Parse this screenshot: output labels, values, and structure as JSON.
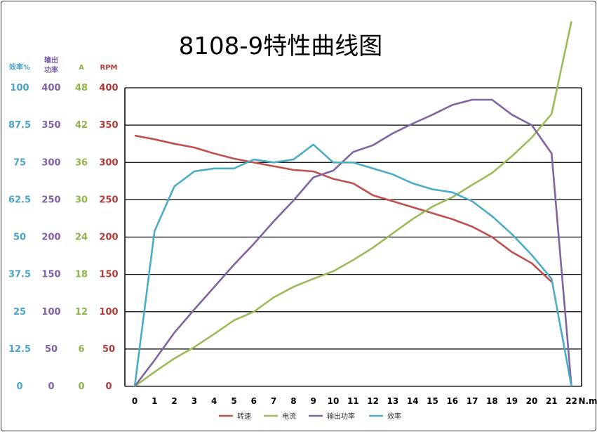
{
  "title": "8108-9特性曲线图",
  "chart_data": {
    "type": "line",
    "title": "8108-9特性曲线图",
    "x": [
      0,
      1,
      2,
      3,
      4,
      5,
      6,
      7,
      8,
      9,
      10,
      11,
      12,
      13,
      14,
      15,
      16,
      17,
      18,
      19,
      20,
      21,
      22
    ],
    "xlim": [
      0,
      22
    ],
    "xunit": "N.m",
    "grid": true,
    "legend_position": "bottom",
    "axes": [
      {
        "header": "效率%",
        "color": "#4aa3c8",
        "ticks": [
          "100",
          "87.5",
          "75",
          "62.5",
          "50",
          "37.5",
          "25",
          "12.5",
          "0"
        ],
        "range": [
          0,
          100
        ]
      },
      {
        "header": "输出功率",
        "color": "#7f5fa8",
        "ticks": [
          "400",
          "350",
          "300",
          "250",
          "200",
          "150",
          "100",
          "50",
          "0"
        ],
        "range": [
          0,
          400
        ]
      },
      {
        "header": "A",
        "color": "#8db548",
        "ticks": [
          "48",
          "42",
          "36",
          "30",
          "24",
          "18",
          "12",
          "6",
          "0"
        ],
        "range": [
          0,
          48
        ]
      },
      {
        "header": "RPM",
        "color": "#b03a35",
        "ticks": [
          "400",
          "350",
          "300",
          "250",
          "200",
          "150",
          "100",
          "50",
          "0"
        ],
        "range": [
          0,
          400
        ]
      }
    ],
    "series": [
      {
        "name": "转速",
        "color": "#c0504d",
        "axis": 3,
        "values": [
          336,
          331,
          325,
          320,
          312,
          305,
          300,
          295,
          290,
          288,
          278,
          272,
          256,
          248,
          240,
          232,
          224,
          214,
          200,
          180,
          165,
          140,
          null
        ]
      },
      {
        "name": "电流",
        "color": "#9bbb59",
        "axis": 2,
        "values": [
          0,
          2.3,
          4.5,
          6.3,
          8.4,
          10.6,
          12,
          14.3,
          16,
          17.3,
          18.5,
          20.3,
          22.3,
          24.6,
          26.9,
          28.9,
          30.4,
          32.4,
          34.3,
          37,
          40,
          43.8,
          58.7
        ]
      },
      {
        "name": "输出功率",
        "color": "#8064a2",
        "axis": 1,
        "values": [
          0,
          35,
          72,
          103,
          133,
          163,
          191,
          221,
          249,
          280,
          289,
          314,
          323,
          339,
          352,
          364,
          377,
          384,
          384,
          364,
          350,
          312,
          0
        ]
      },
      {
        "name": "效率",
        "color": "#4bacc6",
        "axis": 0,
        "values": [
          0,
          52,
          67,
          72,
          73,
          73,
          76,
          75,
          76,
          81,
          75,
          75,
          73,
          71,
          68,
          66,
          65,
          62,
          57,
          51,
          44,
          36,
          0
        ]
      }
    ]
  }
}
